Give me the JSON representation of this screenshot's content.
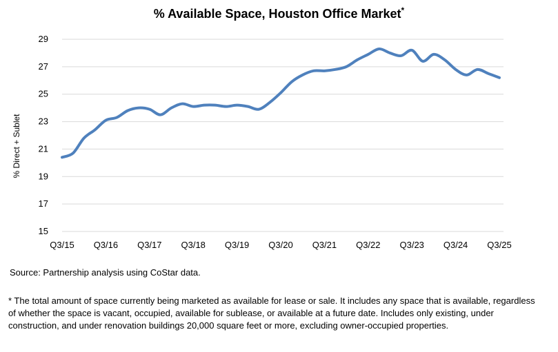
{
  "chart_data": {
    "type": "line",
    "title": "% Available Space, Houston Office Market",
    "title_marker": "*",
    "ylabel": "% Direct + Sublet",
    "xlabel": "",
    "ylim": [
      15,
      29
    ],
    "yticks": [
      15,
      17,
      19,
      21,
      23,
      25,
      27,
      29
    ],
    "xticks": [
      "Q3/15",
      "Q3/16",
      "Q3/17",
      "Q3/18",
      "Q3/19",
      "Q3/20",
      "Q3/21",
      "Q3/22",
      "Q3/23",
      "Q3/24",
      "Q3/25"
    ],
    "grid": "horizontal",
    "line_color": "#4f81bd",
    "series": [
      {
        "x": [
          "Q3/15",
          "Q4/15",
          "Q1/16",
          "Q2/16",
          "Q3/16",
          "Q4/16",
          "Q1/17",
          "Q2/17",
          "Q3/17",
          "Q4/17",
          "Q1/18",
          "Q2/18",
          "Q3/18",
          "Q4/18",
          "Q1/19",
          "Q2/19",
          "Q3/19",
          "Q4/19",
          "Q1/20",
          "Q2/20",
          "Q3/20",
          "Q4/20",
          "Q1/21",
          "Q2/21",
          "Q3/21",
          "Q4/21",
          "Q1/22",
          "Q2/22",
          "Q3/22",
          "Q4/22",
          "Q1/23",
          "Q2/23",
          "Q3/23",
          "Q4/23",
          "Q1/24",
          "Q2/24",
          "Q3/24",
          "Q4/24",
          "Q1/25",
          "Q2/25",
          "Q3/25"
        ],
        "values": [
          20.4,
          20.7,
          21.8,
          22.4,
          23.1,
          23.3,
          23.8,
          24.0,
          23.9,
          23.5,
          24.0,
          24.3,
          24.1,
          24.2,
          24.2,
          24.1,
          24.2,
          24.1,
          23.9,
          24.4,
          25.1,
          25.9,
          26.4,
          26.7,
          26.7,
          26.8,
          27.0,
          27.5,
          27.9,
          28.3,
          28.0,
          27.8,
          28.2,
          27.4,
          27.9,
          27.5,
          26.8,
          26.4,
          26.8,
          26.5,
          26.2
        ]
      }
    ]
  },
  "source": "Source: Partnership analysis using CoStar data.",
  "footnote": "* The total amount of space currently being marketed as available for lease or sale. It includes any space that is available, regardless of whether the space is vacant, occupied, available for sublease, or available at a future date. Includes only existing, under construction, and under renovation buildings 20,000 square feet or more, excluding owner-occupied properties."
}
